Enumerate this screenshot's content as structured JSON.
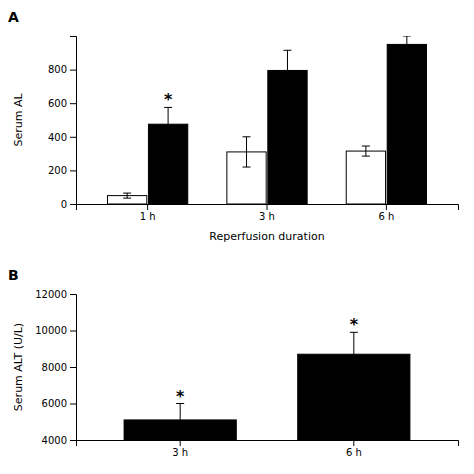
{
  "chart_data": [
    {
      "type": "bar",
      "title": "A",
      "categories": [
        "1 h",
        "3 h",
        "6 h"
      ],
      "series": [
        {
          "color": "#ffffff",
          "values": [
            50,
            310,
            315
          ],
          "errors": [
            15,
            90,
            30
          ],
          "annotations": [
            null,
            null,
            null
          ]
        },
        {
          "color": "#000000",
          "values": [
            475,
            795,
            950
          ],
          "errors": [
            100,
            120,
            50
          ],
          "annotations": [
            "*",
            null,
            null
          ]
        }
      ],
      "xlabel": "Reperfusion duration",
      "ylabel": "Serum AL",
      "ylim": [
        0,
        1000
      ],
      "yticks": [
        0,
        200,
        400,
        600,
        800
      ]
    },
    {
      "type": "bar",
      "title": "B",
      "categories": [
        "3 h",
        "6 h"
      ],
      "series": [
        {
          "color": "#000000",
          "values": [
            5100,
            8700
          ],
          "errors": [
            900,
            1200
          ],
          "annotations": [
            "*",
            "*"
          ]
        }
      ],
      "ylabel": "Serum ALT (U/L)",
      "ylim": [
        4000,
        12000
      ],
      "yticks": [
        4000,
        6000,
        8000,
        10000,
        12000
      ]
    }
  ]
}
